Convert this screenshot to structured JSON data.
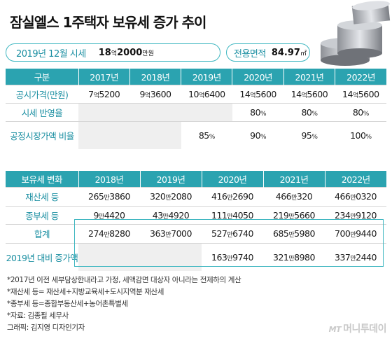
{
  "title": "잠실엘스 1주택자 보유세 증가 추이",
  "info": {
    "price_label": "2019년 12월 시세",
    "price_value_a": "18",
    "price_unit_a": "억",
    "price_value_b": "2000",
    "price_unit_b": "만원",
    "area_label": "전용면적",
    "area_value": "84.97",
    "area_unit": "㎡"
  },
  "table1": {
    "headers": [
      "구분",
      "2017년",
      "2018년",
      "2019년",
      "2020년",
      "2021년",
      "2022년"
    ],
    "rows": [
      {
        "label": "공시가격(만원)",
        "cells": [
          {
            "a": "7",
            "u": "억",
            "b": "5200"
          },
          {
            "a": "9",
            "u": "억",
            "b": "3600"
          },
          {
            "a": "10",
            "u": "억",
            "b": "6400"
          },
          {
            "a": "14",
            "u": "억",
            "b": "5600"
          },
          {
            "a": "14",
            "u": "억",
            "b": "5600"
          },
          {
            "a": "14",
            "u": "억",
            "b": "5600"
          }
        ]
      },
      {
        "label": "시세 반영율",
        "cells": [
          {
            "a": "",
            "u": "",
            "b": ""
          },
          {
            "a": "",
            "u": "",
            "b": ""
          },
          {
            "a": "",
            "u": "",
            "b": ""
          },
          {
            "a": "80",
            "u": "%",
            "b": ""
          },
          {
            "a": "80",
            "u": "%",
            "b": ""
          },
          {
            "a": "80",
            "u": "%",
            "b": ""
          }
        ]
      },
      {
        "label": "공정시장가액 비율",
        "cells": [
          {
            "a": "",
            "u": "",
            "b": ""
          },
          {
            "a": "",
            "u": "",
            "b": ""
          },
          {
            "a": "85",
            "u": "%",
            "b": ""
          },
          {
            "a": "90",
            "u": "%",
            "b": ""
          },
          {
            "a": "95",
            "u": "%",
            "b": ""
          },
          {
            "a": "100",
            "u": "%",
            "b": ""
          }
        ]
      }
    ]
  },
  "table2": {
    "headers": [
      "보유세 변화",
      "2018년",
      "2019년",
      "2020년",
      "2021년",
      "2022년"
    ],
    "rows": [
      {
        "label": "재산세 등",
        "cells": [
          {
            "a": "265",
            "u": "만",
            "b": "3860"
          },
          {
            "a": "320",
            "u": "만",
            "b": "2080"
          },
          {
            "a": "416",
            "u": "만",
            "b": "2690"
          },
          {
            "a": "466",
            "u": "만",
            "b": "320"
          },
          {
            "a": "466",
            "u": "만",
            "b": "0320"
          }
        ]
      },
      {
        "label": "종부세 등",
        "cells": [
          {
            "a": "9",
            "u": "만",
            "b": "4420"
          },
          {
            "a": "43",
            "u": "만",
            "b": "4920"
          },
          {
            "a": "111",
            "u": "만",
            "b": "4050"
          },
          {
            "a": "219",
            "u": "만",
            "b": "5660"
          },
          {
            "a": "234",
            "u": "만",
            "b": "9120"
          }
        ]
      },
      {
        "label": "합계",
        "cells": [
          {
            "a": "274",
            "u": "만",
            "b": "8280"
          },
          {
            "a": "363",
            "u": "만",
            "b": "7000"
          },
          {
            "a": "527",
            "u": "만",
            "b": "6740"
          },
          {
            "a": "685",
            "u": "만",
            "b": "5980"
          },
          {
            "a": "700",
            "u": "만",
            "b": "9440"
          }
        ]
      },
      {
        "label": "2019년 대비 증가액",
        "cells": [
          {
            "a": "",
            "u": "",
            "b": ""
          },
          {
            "a": "",
            "u": "",
            "b": ""
          },
          {
            "a": "163",
            "u": "만",
            "b": "9740"
          },
          {
            "a": "321",
            "u": "만",
            "b": "8980"
          },
          {
            "a": "337",
            "u": "만",
            "b": "2440"
          }
        ]
      }
    ]
  },
  "notes": [
    "*2017년 이전 세부담상한내라고 가정, 세액감면 대상자 아니라는 전제하의 계산",
    "*재산세 등= 재산세+지방교육세+도시지역분 재산세",
    "*종부세 등=종합부동산세+농어촌특별세",
    "*자료: 김종필 세무사",
    "그래픽: 김지영 디자인기자"
  ],
  "brand": {
    "mt": "MT",
    "name": "머니투데이"
  }
}
